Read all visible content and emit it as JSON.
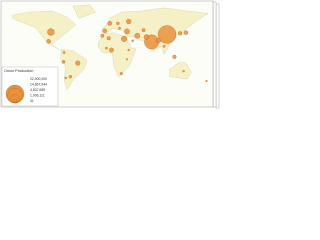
{
  "map": {
    "legend": {
      "title": "Onion Production",
      "items": [
        {
          "value": 22000000,
          "label": "22,000,000"
        },
        {
          "value": 14667944,
          "label": "14,667,944"
        },
        {
          "value": 4837689,
          "label": "4,837,689"
        },
        {
          "value": 1006111,
          "label": "1,006,111"
        },
        {
          "value": 31,
          "label": "31"
        }
      ]
    },
    "points": [
      {
        "lon": 105,
        "lat": 34,
        "value": 22000000
      },
      {
        "lon": 78,
        "lat": 22,
        "value": 14000000
      },
      {
        "lon": -98,
        "lat": 38,
        "value": 3300000
      },
      {
        "lon": 30,
        "lat": 27,
        "value": 2200000
      },
      {
        "lon": 35,
        "lat": 39,
        "value": 1900000
      },
      {
        "lon": 53,
        "lat": 32,
        "value": 1900000
      },
      {
        "lon": 38,
        "lat": 55,
        "value": 1600000
      },
      {
        "lon": 90,
        "lat": 24,
        "value": 1400000
      },
      {
        "lon": -51,
        "lat": -12,
        "value": 1500000
      },
      {
        "lon": 8,
        "lat": 9,
        "value": 1300000
      },
      {
        "lon": 138,
        "lat": 37,
        "value": 1100000
      },
      {
        "lon": 69,
        "lat": 30,
        "value": 1700000
      },
      {
        "lon": -102,
        "lat": 23,
        "value": 1200000
      },
      {
        "lon": 5,
        "lat": 52,
        "value": 1300000
      },
      {
        "lon": -4,
        "lat": 40,
        "value": 1100000
      },
      {
        "lon": 19,
        "lat": 52,
        "value": 600000
      },
      {
        "lon": 118,
        "lat": -2,
        "value": 900000
      },
      {
        "lon": 128,
        "lat": 36,
        "value": 1000000
      },
      {
        "lon": 3,
        "lat": 28,
        "value": 900000
      },
      {
        "lon": 64,
        "lat": 41,
        "value": 800000
      },
      {
        "lon": 100,
        "lat": 15,
        "value": 400000
      },
      {
        "lon": 22,
        "lat": 44,
        "value": 400000
      },
      {
        "lon": -64,
        "lat": -34,
        "value": 600000
      },
      {
        "lon": -72,
        "lat": -36,
        "value": 300000
      },
      {
        "lon": 25,
        "lat": -29,
        "value": 500000
      },
      {
        "lon": 134,
        "lat": -25,
        "value": 250000
      },
      {
        "lon": 174,
        "lat": -41,
        "value": 200000
      },
      {
        "lon": -75,
        "lat": 5,
        "value": 400000
      },
      {
        "lon": -76,
        "lat": -10,
        "value": 700000
      },
      {
        "lon": 45,
        "lat": 24,
        "value": 300000
      },
      {
        "lon": -8,
        "lat": 32,
        "value": 800000
      },
      {
        "lon": 38,
        "lat": 9,
        "value": 250000
      },
      {
        "lon": 35,
        "lat": -6,
        "value": 200000
      },
      {
        "lon": -1,
        "lat": 12,
        "value": 400000
      }
    ]
  }
}
